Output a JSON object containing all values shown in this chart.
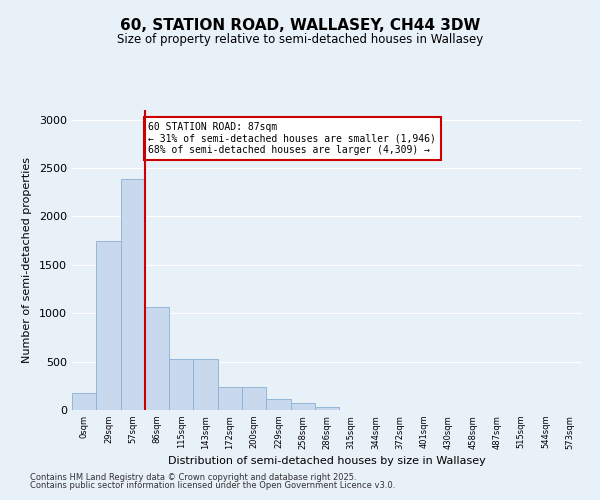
{
  "title": "60, STATION ROAD, WALLASEY, CH44 3DW",
  "subtitle": "Size of property relative to semi-detached houses in Wallasey",
  "xlabel": "Distribution of semi-detached houses by size in Wallasey",
  "ylabel": "Number of semi-detached properties",
  "bar_color": "#c8d9ee",
  "bar_edge_color": "#8ab0d4",
  "background_color": "#e8f0f8",
  "plot_bg_color": "#e8f0f8",
  "grid_color": "#ffffff",
  "vline_color": "#cc0000",
  "vline_x_idx": 3,
  "annotation_text": "60 STATION ROAD: 87sqm\n← 31% of semi-detached houses are smaller (1,946)\n68% of semi-detached houses are larger (4,309) →",
  "annotation_box_color": "#ffffff",
  "annotation_box_edge": "#cc0000",
  "footer1": "Contains HM Land Registry data © Crown copyright and database right 2025.",
  "footer2": "Contains public sector information licensed under the Open Government Licence v3.0.",
  "categories": [
    "0sqm",
    "29sqm",
    "57sqm",
    "86sqm",
    "115sqm",
    "143sqm",
    "172sqm",
    "200sqm",
    "229sqm",
    "258sqm",
    "286sqm",
    "315sqm",
    "344sqm",
    "372sqm",
    "401sqm",
    "430sqm",
    "458sqm",
    "487sqm",
    "515sqm",
    "544sqm",
    "573sqm"
  ],
  "values": [
    175,
    1750,
    2390,
    1060,
    530,
    530,
    240,
    240,
    110,
    70,
    28,
    0,
    0,
    0,
    0,
    0,
    0,
    0,
    0,
    0,
    0
  ],
  "ylim": [
    0,
    3100
  ],
  "yticks": [
    0,
    500,
    1000,
    1500,
    2000,
    2500,
    3000
  ]
}
